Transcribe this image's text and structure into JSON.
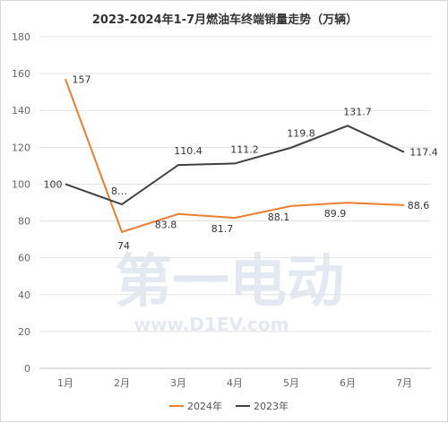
{
  "chart_data": {
    "type": "line",
    "title": "2023-2024年1-7月燃油车终端销量走势（万辆）",
    "categories": [
      "1月",
      "2月",
      "3月",
      "4月",
      "5月",
      "6月",
      "7月"
    ],
    "ylim": [
      0,
      180
    ],
    "yticks": [
      0,
      20,
      40,
      60,
      80,
      100,
      120,
      140,
      160,
      180
    ],
    "grid": true,
    "legend_position": "bottom",
    "series": [
      {
        "name": "2024年",
        "color": "#ED7D31",
        "values": [
          157,
          74,
          83.8,
          81.7,
          88.1,
          89.9,
          88.6
        ],
        "labels": [
          "157",
          "74",
          "83.8",
          "81.7",
          "88.1",
          "89.9",
          "88.6"
        ]
      },
      {
        "name": "2023年",
        "color": "#404040",
        "values": [
          100,
          89,
          110.4,
          111.2,
          119.8,
          131.7,
          117.4
        ],
        "labels": [
          "100",
          "8…",
          "110.4",
          "111.2",
          "119.8",
          "131.7",
          "117.4"
        ]
      }
    ],
    "watermark": {
      "text": "第一电动",
      "url": "www.D1EV.com"
    }
  }
}
